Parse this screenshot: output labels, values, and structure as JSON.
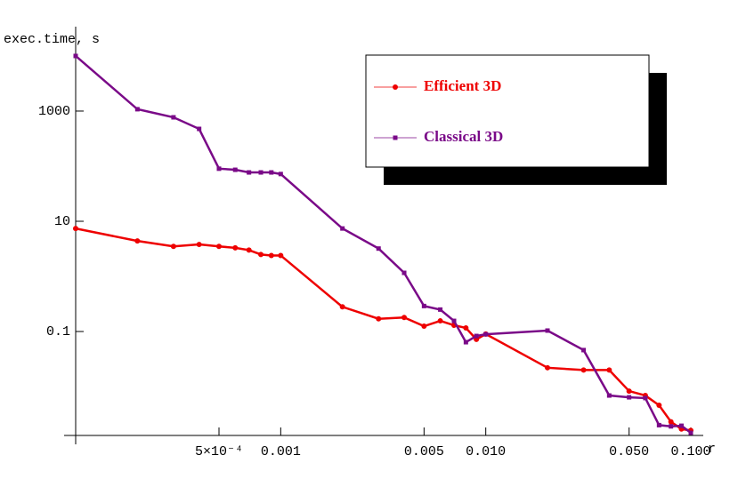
{
  "chart_data": {
    "type": "line",
    "y_label": "exec.time, s",
    "x_label": "r",
    "log_x": true,
    "log_y": true,
    "x": [
      0.0001,
      0.0002,
      0.0003,
      0.0004,
      0.0005,
      0.0006,
      0.0007,
      0.0008,
      0.0009,
      0.001,
      0.002,
      0.003,
      0.004,
      0.005,
      0.006,
      0.007,
      0.008,
      0.009,
      0.01,
      0.02,
      0.03,
      0.04,
      0.05,
      0.06,
      0.07,
      0.08,
      0.09,
      0.1
    ],
    "series": [
      {
        "name": "Efficient 3D",
        "color": "#ee0000",
        "marker": "circle",
        "values": [
          7.4,
          4.4,
          3.5,
          3.8,
          3.5,
          3.3,
          3.0,
          2.5,
          2.4,
          2.4,
          0.28,
          0.17,
          0.18,
          0.125,
          0.156,
          0.13,
          0.116,
          0.072,
          0.09,
          0.022,
          0.02,
          0.02,
          0.0083,
          0.0069,
          0.0046,
          0.0023,
          0.0017,
          0.0016
        ]
      },
      {
        "name": "Classical 3D",
        "color": "#7a0a88",
        "marker": "square",
        "values": [
          10000,
          1080,
          770,
          475,
          90,
          86,
          77,
          77,
          77,
          72,
          7.4,
          3.2,
          1.16,
          0.29,
          0.25,
          0.156,
          0.064,
          0.083,
          0.089,
          0.104,
          0.046,
          0.0069,
          0.0064,
          0.0062,
          0.002,
          0.0019,
          0.00195,
          0.00145
        ]
      }
    ],
    "xlim": [
      0.0001,
      0.115
    ],
    "ylim": [
      0.0013,
      34000
    ],
    "xticks": [
      {
        "value": 0.0005,
        "label": "5×10⁻⁴"
      },
      0.001,
      0.005,
      {
        "value": 0.01,
        "label": "0.010"
      },
      {
        "value": 0.05,
        "label": "0.050"
      },
      {
        "value": 0.1,
        "label": "0.100"
      }
    ],
    "yticks": [
      1000,
      10,
      0.1
    ]
  }
}
